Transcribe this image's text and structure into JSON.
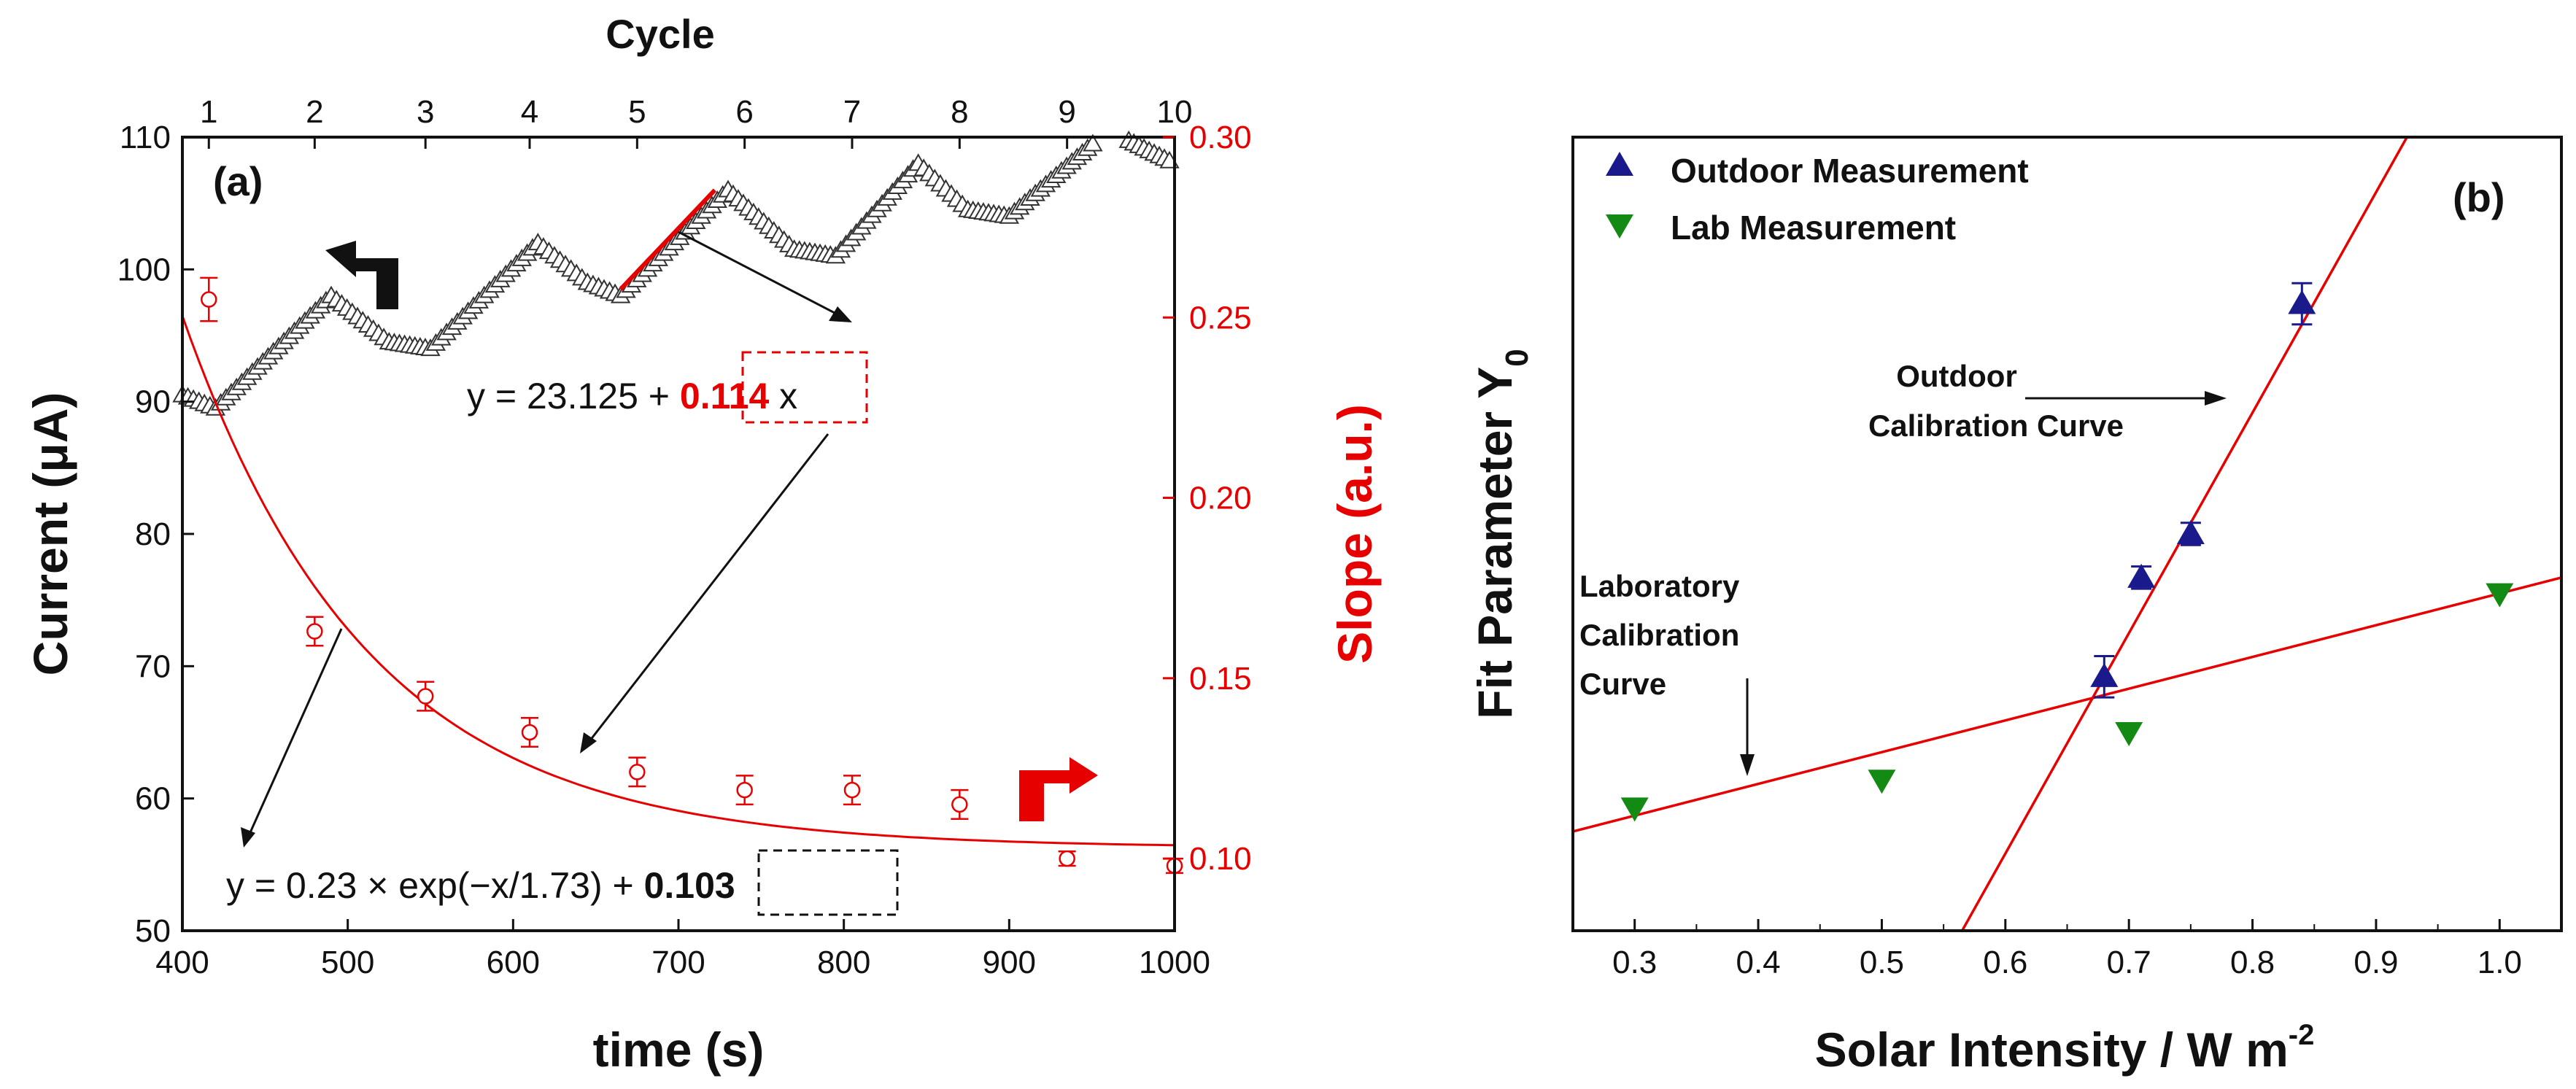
{
  "chart_data": [
    {
      "type": "line",
      "panel_label": "(a)",
      "xlabel": "time (s)",
      "ylabel": "Current (μA)",
      "y2label": "Slope (a.u.)",
      "top_xlabel": "Cycle",
      "xlim": [
        400,
        1000
      ],
      "ylim": [
        50,
        110
      ],
      "y2lim": [
        0.08,
        0.3
      ],
      "x_ticks": [
        400,
        500,
        600,
        700,
        800,
        900,
        1000
      ],
      "y_ticks": [
        50,
        60,
        70,
        80,
        90,
        100,
        110
      ],
      "y2_ticks": [
        "0.10",
        "0.15",
        "0.20",
        "0.25",
        "0.30"
      ],
      "top_ticks": [
        "1",
        "2",
        "3",
        "4",
        "5",
        "6",
        "7",
        "8",
        "9",
        "10"
      ],
      "top_tick_x": [
        416,
        480,
        547,
        610,
        675,
        740,
        805,
        870,
        935,
        1000
      ],
      "current_sawtooth": {
        "x": [
          400,
          420,
          490,
          525,
          550,
          615,
          645,
          665,
          730,
          770,
          795,
          845,
          875,
          900,
          960,
          1000
        ],
        "y": [
          90.5,
          89.5,
          98.0,
          94.5,
          94.0,
          102.0,
          99.0,
          98.0,
          106.0,
          101.5,
          101.0,
          108.0,
          104.5,
          104.0,
          110.5,
          108.0
        ]
      },
      "linear_fit": {
        "x": [
          665,
          722
        ],
        "y": [
          98.5,
          106
        ]
      },
      "slope_points": {
        "x": [
          416,
          480,
          547,
          610,
          675,
          740,
          805,
          870,
          935,
          1000
        ],
        "y": [
          0.255,
          0.163,
          0.145,
          0.135,
          0.124,
          0.119,
          0.119,
          0.115,
          0.1,
          0.098
        ],
        "err": [
          0.006,
          0.004,
          0.004,
          0.004,
          0.004,
          0.004,
          0.004,
          0.004,
          0.002,
          0.002
        ]
      },
      "exp_fit": {
        "a": 0.23,
        "tau": 1.73,
        "c": 0.103
      },
      "annotations": {
        "linear_eq_prefix": "y = 23.125 + ",
        "linear_eq_slope": "0.114",
        "linear_eq_suffix": " x",
        "exp_eq_prefix": "y = 0.23 × exp(−x/1.73) + ",
        "exp_eq_const": "0.103"
      }
    },
    {
      "type": "scatter",
      "panel_label": "(b)",
      "xlabel": "Solar Intensity / W m",
      "xlabel_sup": "-2",
      "ylabel": "Fit Parameter Y",
      "ylabel_sub": "0",
      "xlim": [
        0.25,
        1.05
      ],
      "ylim": [
        0,
        100
      ],
      "x_ticks": [
        "0.3",
        "0.4",
        "0.5",
        "0.6",
        "0.7",
        "0.8",
        "0.9",
        "1.0"
      ],
      "series": [
        {
          "name": "Outdoor Measurement",
          "color": "#1a1a8c",
          "marker": "triangle-up",
          "x": [
            0.68,
            0.71,
            0.75,
            0.84
          ],
          "y": [
            32,
            44.5,
            50,
            79
          ],
          "err": [
            2.6,
            1.4,
            1.4,
            2.6
          ]
        },
        {
          "name": "Lab Measurement",
          "color": "#138a13",
          "marker": "triangle-down",
          "x": [
            0.3,
            0.5,
            0.7,
            1.0
          ],
          "y": [
            15.5,
            19,
            25,
            42.5
          ]
        }
      ],
      "fit_lines": [
        {
          "name": "Outdoor Calibration Curve",
          "x": [
            0.565,
            0.925
          ],
          "y": [
            0,
            100
          ]
        },
        {
          "name": "Laboratory Calibration Curve",
          "x": [
            0.25,
            1.05
          ],
          "y": [
            12.5,
            44.5
          ]
        }
      ],
      "annotations": {
        "outdoor_label_1": "Outdoor",
        "outdoor_label_2": "Calibration Curve",
        "lab_label_1": "Laboratory",
        "lab_label_2": "Calibration",
        "lab_label_3": "Curve"
      }
    }
  ],
  "colors": {
    "red": "#e60000",
    "black": "#111111"
  }
}
